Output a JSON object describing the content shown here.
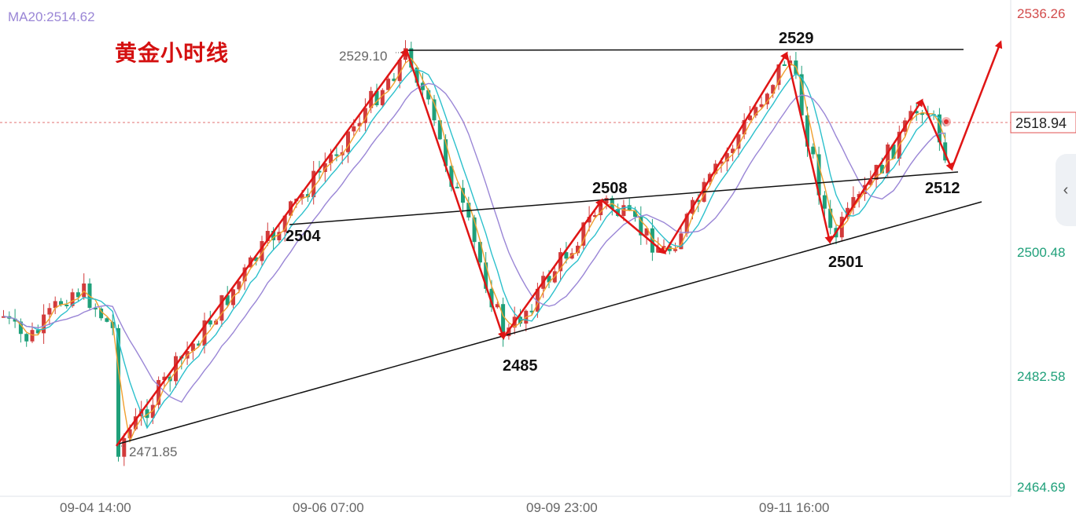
{
  "indicator": {
    "ma_label": "MA20:2514.62"
  },
  "chart_data": {
    "type": "candlestick",
    "title": "黄金小时线",
    "y_axis": {
      "ticks": [
        "2536.26",
        "2500.48",
        "2482.58",
        "2464.69"
      ],
      "range": [
        2464.69,
        2536.26
      ]
    },
    "x_axis": {
      "ticks": [
        "09-04 14:00",
        "09-06 07:00",
        "09-09 23:00",
        "09-11 16:00"
      ]
    },
    "current_price": "2518.94",
    "price_markers": {
      "high": "2529.10",
      "low": "2471.85"
    },
    "annotations": [
      "2529",
      "2504",
      "2508",
      "2485",
      "2501",
      "2512"
    ],
    "colors": {
      "up": "#d23b3b",
      "down": "#1fa07a",
      "arrow": "#e01515",
      "ma_fast": "#f0a030",
      "ma_mid": "#2cc0cc",
      "ma_slow": "#9a86d6",
      "price_line": "#e05050"
    },
    "grid": false
  }
}
